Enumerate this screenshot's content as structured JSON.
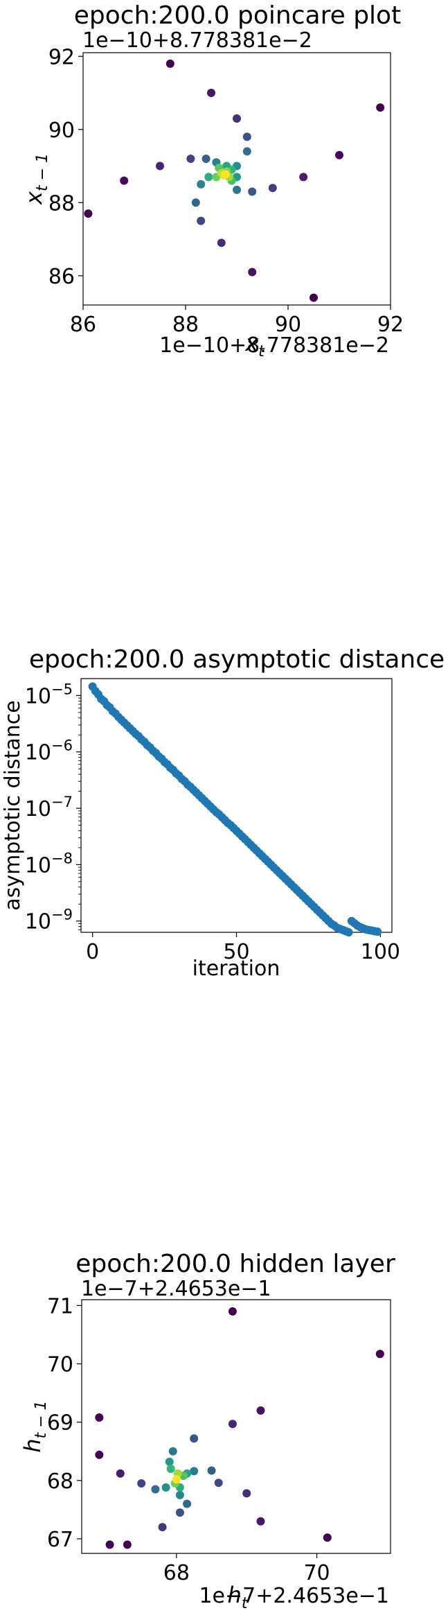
{
  "chart_data": [
    {
      "type": "scatter",
      "title": "epoch:200.0 poincare plot",
      "xlabel": "x",
      "xlabel_sub": "t",
      "ylabel": "x",
      "ylabel_sub": "t − 1",
      "xlim": [
        86.0,
        92.0
      ],
      "ylim": [
        85.2,
        92.1
      ],
      "xticks": [
        "86",
        "88",
        "90",
        "92"
      ],
      "yticks": [
        "86",
        "88",
        "90",
        "92"
      ],
      "x_offset_label": "1e−10+8.778381e−2",
      "y_offset_label": "1e−10+8.778381e−2",
      "colormap": "viridis",
      "points": [
        {
          "x": 91.8,
          "y": 90.6,
          "t": 0.0
        },
        {
          "x": 86.1,
          "y": 87.7,
          "t": 0.0
        },
        {
          "x": 90.5,
          "y": 85.4,
          "t": 0.0
        },
        {
          "x": 87.7,
          "y": 91.8,
          "t": 0.0
        },
        {
          "x": 91.0,
          "y": 89.3,
          "t": 0.02
        },
        {
          "x": 86.8,
          "y": 88.6,
          "t": 0.03
        },
        {
          "x": 89.3,
          "y": 86.1,
          "t": 0.05
        },
        {
          "x": 88.5,
          "y": 91.0,
          "t": 0.06
        },
        {
          "x": 90.3,
          "y": 88.7,
          "t": 0.08
        },
        {
          "x": 87.5,
          "y": 89.0,
          "t": 0.1
        },
        {
          "x": 88.7,
          "y": 86.9,
          "t": 0.12
        },
        {
          "x": 89.0,
          "y": 90.3,
          "t": 0.14
        },
        {
          "x": 89.7,
          "y": 88.4,
          "t": 0.18
        },
        {
          "x": 88.1,
          "y": 89.2,
          "t": 0.2
        },
        {
          "x": 88.3,
          "y": 87.5,
          "t": 0.22
        },
        {
          "x": 89.2,
          "y": 89.8,
          "t": 0.25
        },
        {
          "x": 89.3,
          "y": 88.3,
          "t": 0.28
        },
        {
          "x": 88.4,
          "y": 89.2,
          "t": 0.3
        },
        {
          "x": 88.2,
          "y": 88.0,
          "t": 0.33
        },
        {
          "x": 89.2,
          "y": 89.4,
          "t": 0.36
        },
        {
          "x": 89.0,
          "y": 88.35,
          "t": 0.4
        },
        {
          "x": 88.6,
          "y": 89.1,
          "t": 0.43
        },
        {
          "x": 88.3,
          "y": 88.5,
          "t": 0.46
        },
        {
          "x": 89.0,
          "y": 89.0,
          "t": 0.5
        },
        {
          "x": 89.0,
          "y": 88.7,
          "t": 0.54
        },
        {
          "x": 88.8,
          "y": 89.0,
          "t": 0.58
        },
        {
          "x": 88.45,
          "y": 88.7,
          "t": 0.62
        },
        {
          "x": 88.9,
          "y": 88.9,
          "t": 0.66
        },
        {
          "x": 88.9,
          "y": 88.6,
          "t": 0.7
        },
        {
          "x": 88.65,
          "y": 88.95,
          "t": 0.74
        },
        {
          "x": 88.6,
          "y": 88.7,
          "t": 0.78
        },
        {
          "x": 88.8,
          "y": 88.85,
          "t": 0.82
        },
        {
          "x": 88.85,
          "y": 88.7,
          "t": 0.86
        },
        {
          "x": 88.7,
          "y": 88.8,
          "t": 0.9
        },
        {
          "x": 88.75,
          "y": 88.75,
          "t": 0.95
        },
        {
          "x": 88.78,
          "y": 88.77,
          "t": 1.0
        }
      ]
    },
    {
      "type": "scatter",
      "title": "epoch:200.0 asymptotic distance",
      "xlabel": "iteration",
      "ylabel": "asymptotic distance",
      "yscale": "log",
      "xlim": [
        -4,
        104
      ],
      "ylim_log10": [
        -9.2,
        -4.7
      ],
      "xticks": [
        0,
        50,
        100
      ],
      "yticks_exp": [
        -5,
        -6,
        -7,
        -8,
        -9
      ],
      "ytick_base": "10",
      "color": "#1f77b4",
      "x": [
        0,
        1,
        2,
        3,
        4,
        5,
        6,
        7,
        8,
        9,
        10,
        11,
        12,
        13,
        14,
        15,
        16,
        17,
        18,
        19,
        20,
        21,
        22,
        23,
        24,
        25,
        26,
        27,
        28,
        29,
        30,
        31,
        32,
        33,
        34,
        35,
        36,
        37,
        38,
        39,
        40,
        41,
        42,
        43,
        44,
        45,
        46,
        47,
        48,
        49,
        50,
        51,
        52,
        53,
        54,
        55,
        56,
        57,
        58,
        59,
        60,
        61,
        62,
        63,
        64,
        65,
        66,
        67,
        68,
        69,
        70,
        71,
        72,
        73,
        74,
        75,
        76,
        77,
        78,
        79,
        80,
        81,
        82,
        83,
        84,
        85,
        86,
        87,
        88,
        89,
        90,
        91,
        92,
        93,
        94,
        95,
        96,
        97,
        98,
        99
      ],
      "y_log10": [
        -4.84,
        -4.92,
        -4.98,
        -5.06,
        -5.1,
        -5.17,
        -5.21,
        -5.28,
        -5.32,
        -5.38,
        -5.43,
        -5.48,
        -5.53,
        -5.58,
        -5.63,
        -5.68,
        -5.72,
        -5.78,
        -5.82,
        -5.88,
        -5.92,
        -5.98,
        -6.02,
        -6.08,
        -6.12,
        -6.18,
        -6.22,
        -6.28,
        -6.32,
        -6.38,
        -6.42,
        -6.48,
        -6.52,
        -6.58,
        -6.62,
        -6.67,
        -6.72,
        -6.77,
        -6.82,
        -6.87,
        -6.92,
        -6.97,
        -7.02,
        -7.07,
        -7.11,
        -7.16,
        -7.21,
        -7.26,
        -7.3,
        -7.35,
        -7.4,
        -7.45,
        -7.5,
        -7.55,
        -7.6,
        -7.65,
        -7.7,
        -7.75,
        -7.8,
        -7.85,
        -7.9,
        -7.95,
        -8.0,
        -8.05,
        -8.1,
        -8.15,
        -8.2,
        -8.25,
        -8.3,
        -8.35,
        -8.4,
        -8.45,
        -8.5,
        -8.55,
        -8.6,
        -8.65,
        -8.7,
        -8.75,
        -8.8,
        -8.85,
        -8.9,
        -8.95,
        -9.0,
        -9.05,
        -9.08,
        -9.12,
        -9.14,
        -9.16,
        -9.18,
        -9.2,
        -9.0,
        -9.04,
        -9.08,
        -9.11,
        -9.13,
        -9.15,
        -9.16,
        -9.17,
        -9.18,
        -9.19
      ]
    },
    {
      "type": "scatter",
      "title": "epoch:200.0 hidden layer",
      "xlabel": "h",
      "xlabel_sub": "t",
      "ylabel": "h",
      "ylabel_sub": "t − 1",
      "xlim": [
        66.65,
        71.05
      ],
      "ylim": [
        66.75,
        71.1
      ],
      "xticks": [
        "68",
        "70"
      ],
      "yticks": [
        "67",
        "68",
        "69",
        "70",
        "71"
      ],
      "x_offset_label": "1e−7+2.4653e−1",
      "y_offset_label": "1e−7+2.4653e−1",
      "colormap": "viridis",
      "points": [
        {
          "x": 70.9,
          "y": 70.17,
          "t": 0.0
        },
        {
          "x": 68.8,
          "y": 70.9,
          "t": 0.0
        },
        {
          "x": 66.9,
          "y": 69.08,
          "t": 0.0
        },
        {
          "x": 66.9,
          "y": 68.44,
          "t": 0.0
        },
        {
          "x": 67.05,
          "y": 66.9,
          "t": 0.0
        },
        {
          "x": 67.3,
          "y": 66.9,
          "t": 0.0
        },
        {
          "x": 70.15,
          "y": 67.02,
          "t": 0.0
        },
        {
          "x": 69.2,
          "y": 69.2,
          "t": 0.05
        },
        {
          "x": 69.2,
          "y": 67.3,
          "t": 0.07
        },
        {
          "x": 67.2,
          "y": 68.12,
          "t": 0.08
        },
        {
          "x": 68.8,
          "y": 68.97,
          "t": 0.1
        },
        {
          "x": 69.0,
          "y": 67.78,
          "t": 0.13
        },
        {
          "x": 67.8,
          "y": 67.2,
          "t": 0.15
        },
        {
          "x": 67.5,
          "y": 67.95,
          "t": 0.2
        },
        {
          "x": 68.6,
          "y": 67.96,
          "t": 0.22
        },
        {
          "x": 68.05,
          "y": 67.45,
          "t": 0.25
        },
        {
          "x": 68.25,
          "y": 68.72,
          "t": 0.27
        },
        {
          "x": 68.5,
          "y": 68.17,
          "t": 0.3
        },
        {
          "x": 68.15,
          "y": 67.6,
          "t": 0.33
        },
        {
          "x": 67.7,
          "y": 67.85,
          "t": 0.36
        },
        {
          "x": 67.95,
          "y": 68.5,
          "t": 0.4
        },
        {
          "x": 68.25,
          "y": 68.16,
          "t": 0.43
        },
        {
          "x": 68.05,
          "y": 67.75,
          "t": 0.47
        },
        {
          "x": 67.85,
          "y": 67.88,
          "t": 0.5
        },
        {
          "x": 67.9,
          "y": 68.32,
          "t": 0.54
        },
        {
          "x": 68.15,
          "y": 68.12,
          "t": 0.58
        },
        {
          "x": 68.05,
          "y": 67.88,
          "t": 0.62
        },
        {
          "x": 67.92,
          "y": 68.2,
          "t": 0.66
        },
        {
          "x": 68.1,
          "y": 68.08,
          "t": 0.72
        },
        {
          "x": 67.98,
          "y": 67.95,
          "t": 0.78
        },
        {
          "x": 68.02,
          "y": 68.12,
          "t": 0.86
        },
        {
          "x": 68.0,
          "y": 68.02,
          "t": 1.0
        }
      ]
    }
  ]
}
